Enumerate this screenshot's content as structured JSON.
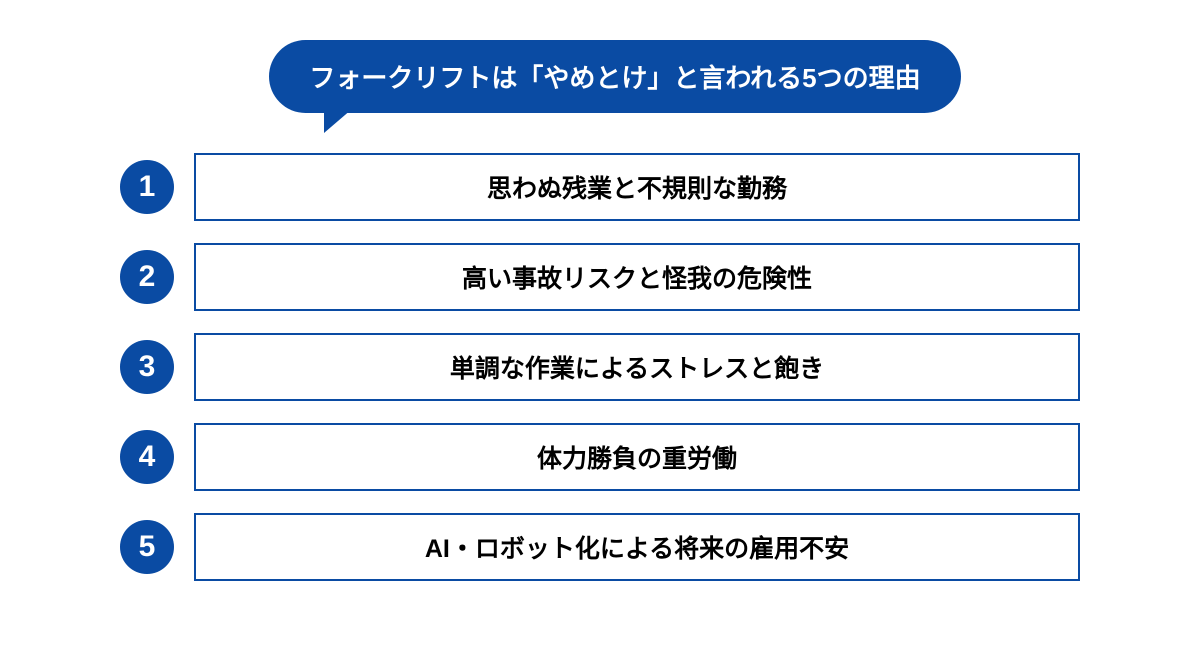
{
  "infographic": {
    "type": "numbered-list",
    "title": "フォークリフトは「やめとけ」と言われる5つの理由",
    "primary_color": "#0a4ba3",
    "text_color": "#000000",
    "bubble_text_color": "#ffffff",
    "background_color": "#ffffff",
    "title_fontsize": 26,
    "item_fontsize": 25,
    "number_fontsize": 30,
    "items": [
      {
        "number": "1",
        "text": "思わぬ残業と不規則な勤務"
      },
      {
        "number": "2",
        "text": "高い事故リスクと怪我の危険性"
      },
      {
        "number": "3",
        "text": "単調な作業によるストレスと飽き"
      },
      {
        "number": "4",
        "text": "体力勝負の重労働"
      },
      {
        "number": "5",
        "text": "AI・ロボット化による将来の雇用不安"
      }
    ]
  }
}
